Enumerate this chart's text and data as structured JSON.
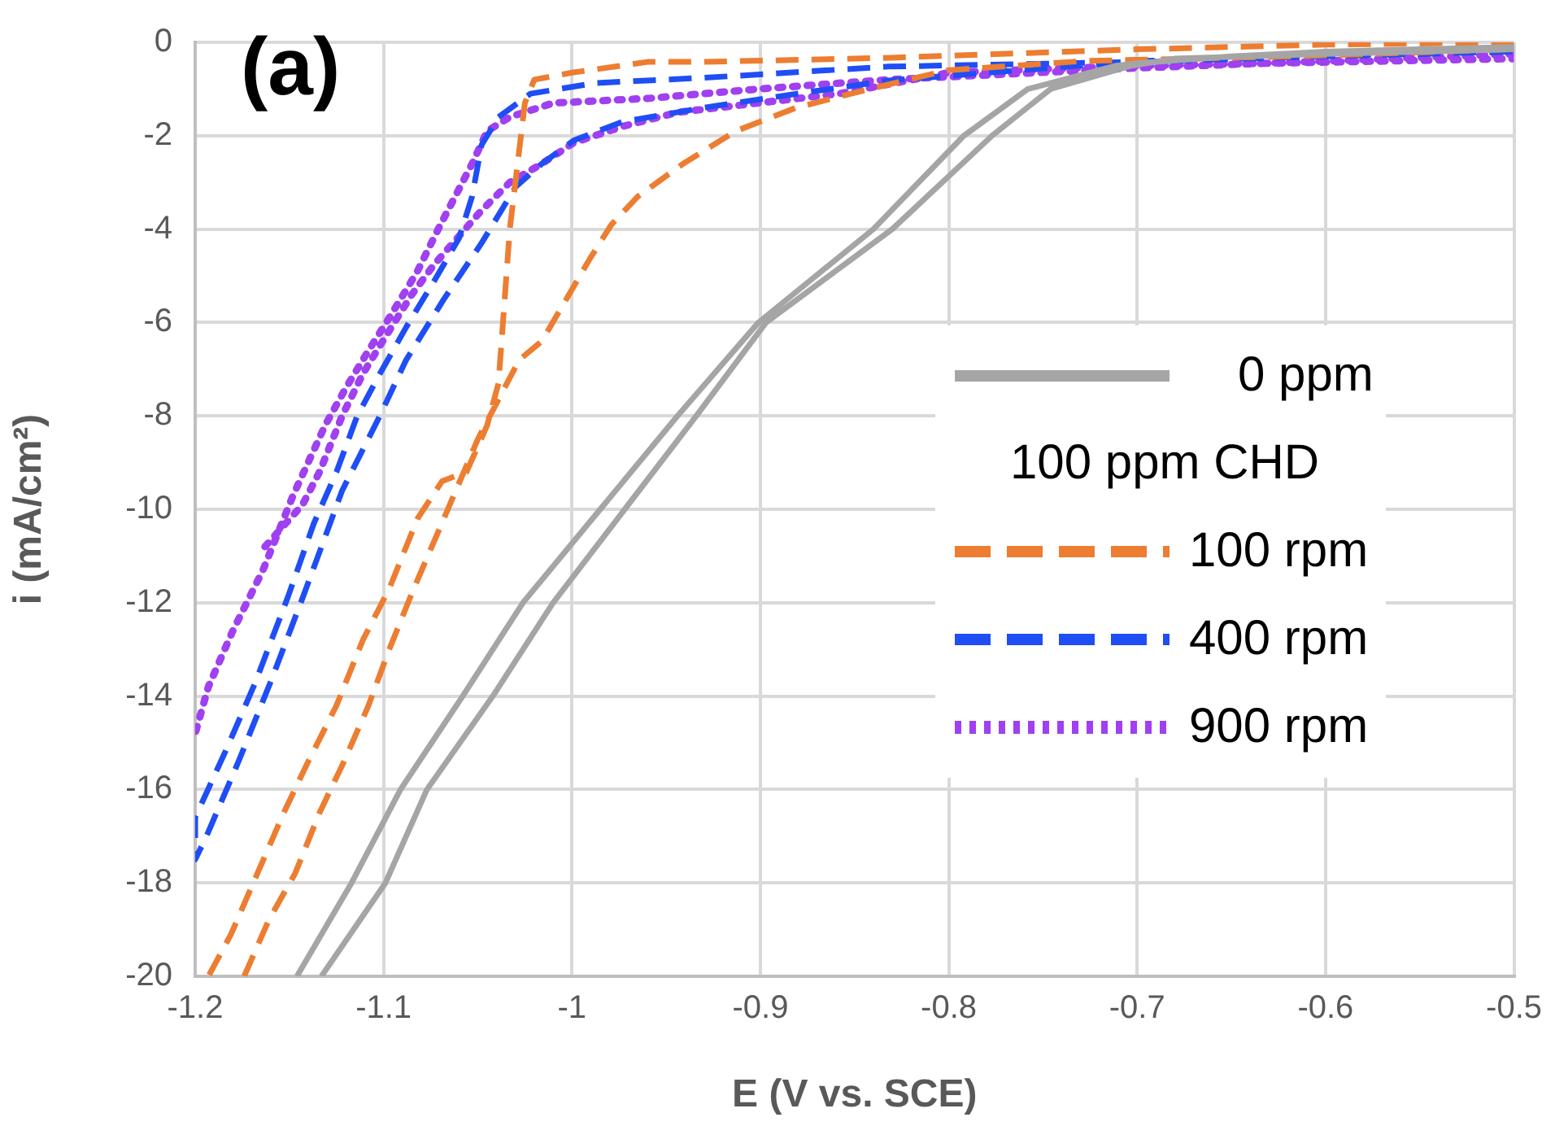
{
  "chart_data": {
    "type": "line",
    "xlabel": "E (V vs. SCE)",
    "ylabel": "i (mA/cm²)",
    "legend_title": "100 ppm CHD",
    "annotations": [
      "(a)"
    ],
    "xlim": [
      -1.2,
      -0.5
    ],
    "xticks": [
      -1.2,
      -1.1,
      -1,
      -0.9,
      -0.8,
      -0.7,
      -0.6,
      -0.5
    ],
    "ylim": [
      -20,
      0
    ],
    "yticks": [
      -20,
      -18,
      -16,
      -14,
      -12,
      -10,
      -8,
      -6,
      -4,
      -2,
      0
    ],
    "grid": true,
    "legend": "right",
    "marker": "none",
    "series": [
      {
        "name": "0 ppm",
        "color": "#a5a5a5",
        "line_style": "solid",
        "x": [
          -0.5,
          -0.55,
          -0.6,
          -0.65,
          -0.7,
          -0.711,
          -0.758,
          -0.792,
          -0.84,
          -0.901,
          -0.944,
          -0.985,
          -1.026,
          -1.058,
          -1.091,
          -1.117,
          -1.146,
          -1.14,
          -1.133,
          -1.099,
          -1.077,
          -1.042,
          -1.01,
          -0.972,
          -0.934,
          -0.897,
          -0.83,
          -0.777,
          -0.746,
          -0.703,
          -0.68,
          -0.6,
          -0.5
        ],
        "values": [
          -0.1,
          -0.15,
          -0.2,
          -0.3,
          -0.45,
          -0.5,
          -1,
          -2,
          -4,
          -6,
          -8,
          -10,
          -12,
          -14,
          -16,
          -18,
          -20,
          null,
          -20,
          -18,
          -16,
          -14,
          -12,
          -10,
          -8,
          -6,
          -4,
          -2,
          -1,
          -0.5,
          -0.35,
          -0.25,
          -0.15
        ]
      },
      {
        "name": "100 rpm",
        "color": "#ed7d31",
        "line_style": "dashed",
        "x": [
          -0.5,
          -0.6,
          -0.7,
          -0.83,
          -0.93,
          -0.96,
          -1,
          -1.02,
          -1.025,
          -1.033,
          -1.039,
          -1.045,
          -1.056,
          -1.069,
          -1.082,
          -1.097,
          -1.111,
          -1.125,
          -1.14,
          -1.153,
          -1.167,
          -1.181,
          -1.193,
          -1.18,
          -1.174,
          -1.161,
          -1.147,
          -1.134,
          -1.121,
          -1.108,
          -1.097,
          -1.084,
          -1.068,
          -1.05,
          -1.028,
          -1.016,
          -1.003,
          -0.99,
          -0.979,
          -0.965,
          -0.941,
          -0.913,
          -0.881,
          -0.847,
          -0.801,
          -0.728,
          -0.614,
          -0.502
        ],
        "values": [
          0,
          -0.05,
          -0.15,
          -0.33,
          -0.42,
          -0.42,
          -0.65,
          -0.8,
          -1.3,
          -4,
          -7.3,
          -8.2,
          -9.2,
          -9.4,
          -10.2,
          -11.7,
          -12.8,
          -14.2,
          -15.4,
          -16.5,
          -17.8,
          -19.1,
          -20,
          null,
          -20,
          -18.8,
          -17.8,
          -16.5,
          -15.4,
          -14.2,
          -13,
          -11.7,
          -10.2,
          -8.5,
          -6.8,
          -6.4,
          -5.5,
          -4.6,
          -3.9,
          -3.3,
          -2.6,
          -1.9,
          -1.4,
          -1.05,
          -0.6,
          -0.4,
          -0.3,
          -0.15
        ]
      },
      {
        "name": "400 rpm",
        "color": "#1f4ef5",
        "line_style": "dashed",
        "x": [
          -0.5,
          -0.6,
          -0.7,
          -0.832,
          -0.93,
          -0.987,
          -1.022,
          -1.039,
          -1.048,
          -1.053,
          -1.06,
          -1.073,
          -1.088,
          -1.102,
          -1.114,
          -1.125,
          -1.137,
          -1.151,
          -1.168,
          -1.183,
          -1.2,
          -1.2,
          -1.194,
          -1.177,
          -1.16,
          -1.143,
          -1.122,
          -1.102,
          -1.088,
          -1.068,
          -1.048,
          -1.03,
          -1.016,
          -0.999,
          -0.973,
          -0.93,
          -0.872,
          -0.832,
          -0.7,
          -0.5
        ],
        "values": [
          -0.1,
          -0.3,
          -0.42,
          -0.52,
          -0.76,
          -0.87,
          -1.1,
          -1.6,
          -2.2,
          -3.3,
          -4.2,
          -5.1,
          -6.1,
          -7.1,
          -8,
          -9.2,
          -10.3,
          -11.9,
          -13.7,
          -15.1,
          -16.6,
          -17.5,
          -17,
          -15.4,
          -13.7,
          -11.9,
          -9.6,
          -8,
          -6.8,
          -5.5,
          -4.3,
          -3.1,
          -2.6,
          -2.1,
          -1.7,
          -1.4,
          -1.05,
          -0.82,
          -0.4,
          -0.2
        ]
      },
      {
        "name": "900 rpm",
        "color": "#a040f0",
        "line_style": "dotted",
        "x": [
          -0.5,
          -0.7,
          -0.832,
          -0.901,
          -0.959,
          -1.01,
          -1.033,
          -1.045,
          -1.053,
          -1.062,
          -1.071,
          -1.082,
          -1.097,
          -1.108,
          -1.12,
          -1.131,
          -1.148,
          -1.164,
          -1.18,
          -1.193,
          -1.2,
          -1.17,
          -1.163,
          -1.143,
          -1.134,
          -1.122,
          -1.111,
          -1.102,
          -1.085,
          -1.073,
          -1.048,
          -1.033,
          -1.016,
          -0.999,
          -0.973,
          -0.944,
          -0.901,
          -0.858,
          -0.8,
          -0.7,
          -0.5
        ],
        "values": [
          -0.25,
          -0.55,
          -0.8,
          -1,
          -1.2,
          -1.3,
          -1.6,
          -1.9,
          -2.6,
          -3.3,
          -4,
          -4.9,
          -5.9,
          -6.6,
          -7.4,
          -8.2,
          -9.7,
          -11.3,
          -12.6,
          -13.8,
          -14.8,
          null,
          -10.8,
          -9.9,
          -9.2,
          -8,
          -7.1,
          -6.5,
          -5.4,
          -4.75,
          -3.6,
          -3,
          -2.6,
          -2.15,
          -1.8,
          -1.5,
          -1.3,
          -1.1,
          -0.65,
          -0.5,
          -0.35
        ]
      }
    ]
  }
}
